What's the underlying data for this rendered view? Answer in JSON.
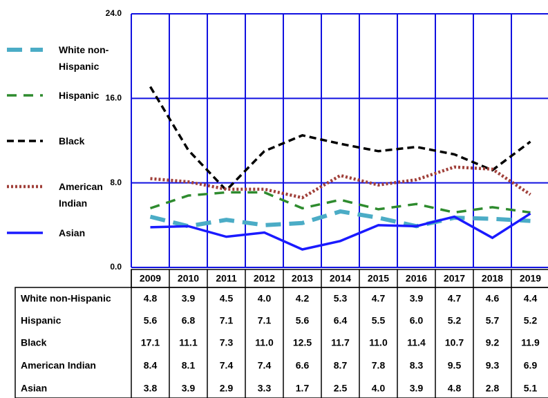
{
  "chart_data": {
    "type": "line",
    "categories": [
      "2009",
      "2010",
      "2011",
      "2012",
      "2013",
      "2014",
      "2015",
      "2016",
      "2017",
      "2018",
      "2019"
    ],
    "ylim": [
      0,
      24
    ],
    "yticks": [
      {
        "value": 0,
        "label": "0.0"
      },
      {
        "value": 8,
        "label": "8.0"
      },
      {
        "value": 16,
        "label": "16.0"
      },
      {
        "value": 24,
        "label": "24.0"
      }
    ],
    "grid": true,
    "series": [
      {
        "name": "White non-Hispanic",
        "color": "#4bacc6",
        "values": [
          4.8,
          3.9,
          4.5,
          4.0,
          4.2,
          5.3,
          4.7,
          3.9,
          4.7,
          4.6,
          4.4
        ],
        "value_labels": [
          "4.8",
          "3.9",
          "4.5",
          "4.0",
          "4.2",
          "5.3",
          "4.7",
          "3.9",
          "4.7",
          "4.6",
          "4.4"
        ]
      },
      {
        "name": "Hispanic",
        "color": "#2e8b2e",
        "values": [
          5.6,
          6.8,
          7.1,
          7.1,
          5.6,
          6.4,
          5.5,
          6.0,
          5.2,
          5.7,
          5.2
        ],
        "value_labels": [
          "5.6",
          "6.8",
          "7.1",
          "7.1",
          "5.6",
          "6.4",
          "5.5",
          "6.0",
          "5.2",
          "5.7",
          "5.2"
        ]
      },
      {
        "name": "Black",
        "color": "#000000",
        "values": [
          17.1,
          11.1,
          7.3,
          11.0,
          12.5,
          11.7,
          11.0,
          11.4,
          10.7,
          9.2,
          11.9
        ],
        "value_labels": [
          "17.1",
          "11.1",
          "7.3",
          "11.0",
          "12.5",
          "11.7",
          "11.0",
          "11.4",
          "10.7",
          "9.2",
          "11.9"
        ]
      },
      {
        "name": "American Indian",
        "color": "#a0403a",
        "values": [
          8.4,
          8.1,
          7.4,
          7.4,
          6.6,
          8.7,
          7.8,
          8.3,
          9.5,
          9.3,
          6.9
        ],
        "value_labels": [
          "8.4",
          "8.1",
          "7.4",
          "7.4",
          "6.6",
          "8.7",
          "7.8",
          "8.3",
          "9.5",
          "9.3",
          "6.9"
        ]
      },
      {
        "name": "Asian",
        "color": "#1a1aff",
        "values": [
          3.8,
          3.9,
          2.9,
          3.3,
          1.7,
          2.5,
          4.0,
          3.9,
          4.8,
          2.8,
          5.1
        ],
        "value_labels": [
          "3.8",
          "3.9",
          "2.9",
          "3.3",
          "1.7",
          "2.5",
          "4.0",
          "3.9",
          "4.8",
          "2.8",
          "5.1"
        ]
      }
    ]
  }
}
